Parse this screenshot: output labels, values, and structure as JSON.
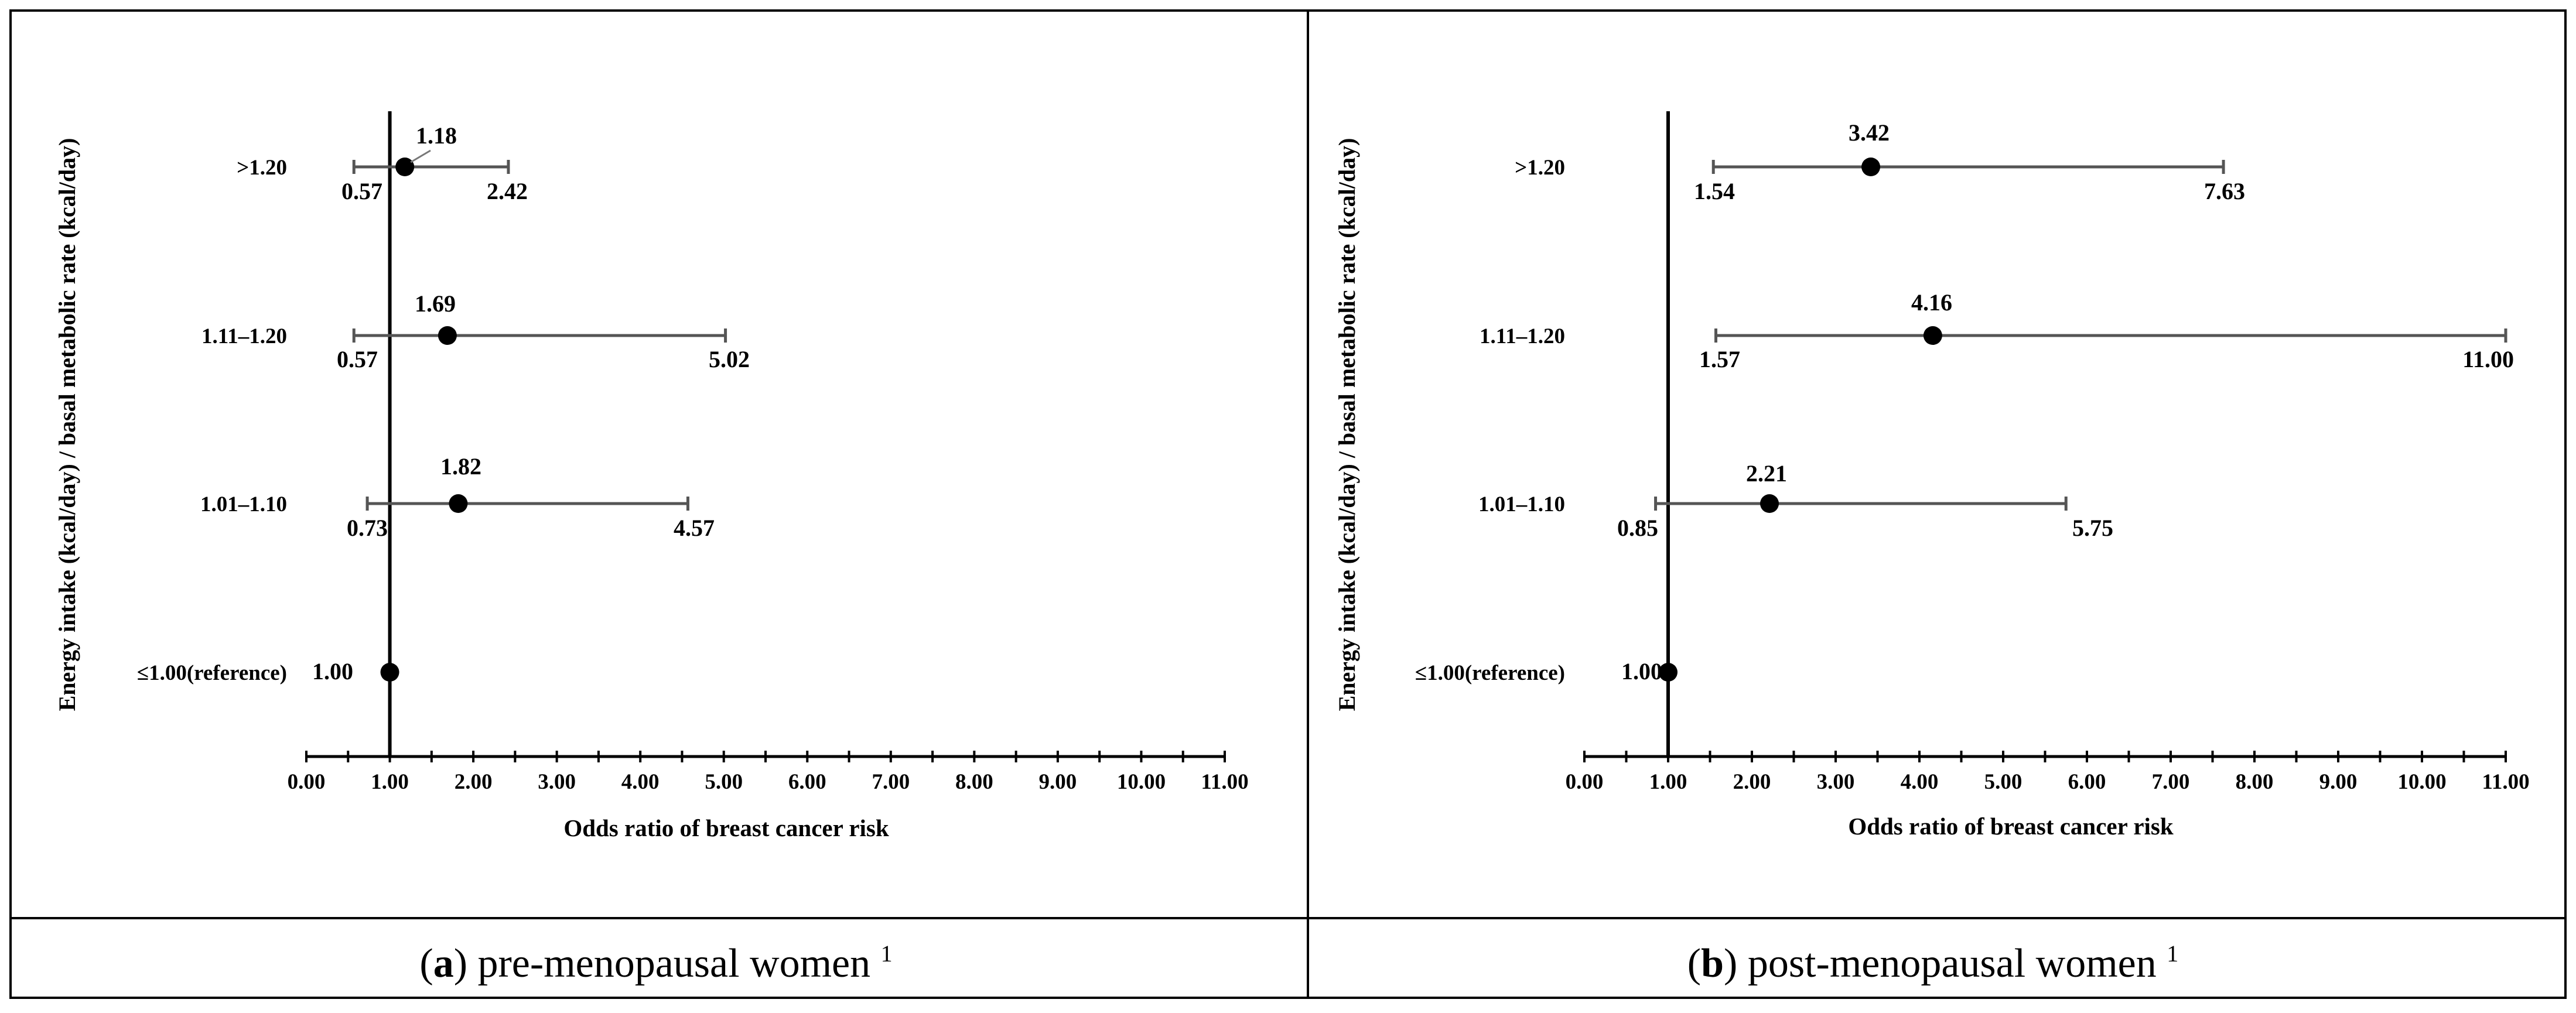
{
  "chart_data": [
    {
      "type": "forest",
      "panel": "a",
      "caption_letter": "a",
      "caption_text": "pre-menopausal women",
      "caption_sup": "1",
      "xlabel": "Odds ratio of breast cancer risk",
      "ylabel": "Energy intake (kcal/day) / basal metabolic rate (kcal/day)",
      "xlim": [
        0,
        11
      ],
      "xticks": [
        "0.00",
        "1.00",
        "2.00",
        "3.00",
        "4.00",
        "5.00",
        "6.00",
        "7.00",
        "8.00",
        "9.00",
        "10.00",
        "11.00"
      ],
      "reference_line": 1,
      "rows": [
        {
          "category": ">1.20",
          "or": 1.18,
          "lower": 0.57,
          "upper": 2.42,
          "or_text": "1.18",
          "lower_text": "0.57",
          "upper_text": "2.42"
        },
        {
          "category": "1.11–1.20",
          "or": 1.69,
          "lower": 0.57,
          "upper": 5.02,
          "or_text": "1.69",
          "lower_text": "0.57",
          "upper_text": "5.02"
        },
        {
          "category": "1.01–1.10",
          "or": 1.82,
          "lower": 0.73,
          "upper": 4.57,
          "or_text": "1.82",
          "lower_text": "0.73",
          "upper_text": "4.57"
        },
        {
          "category": "≤1.00(reference)",
          "or": 1.0,
          "or_text": "1.00"
        }
      ]
    },
    {
      "type": "forest",
      "panel": "b",
      "caption_letter": "b",
      "caption_text": "post-menopausal women",
      "caption_sup": "1",
      "xlabel": "Odds ratio of breast cancer risk",
      "ylabel": "Energy intake (kcal/day) / basal metabolic rate (kcal/day)",
      "xlim": [
        0,
        11
      ],
      "xticks": [
        "0.00",
        "1.00",
        "2.00",
        "3.00",
        "4.00",
        "5.00",
        "6.00",
        "7.00",
        "8.00",
        "9.00",
        "10.00",
        "11.00"
      ],
      "reference_line": 1,
      "rows": [
        {
          "category": ">1.20",
          "or": 3.42,
          "lower": 1.54,
          "upper": 7.63,
          "or_text": "3.42",
          "lower_text": "1.54",
          "upper_text": "7.63"
        },
        {
          "category": "1.11–1.20",
          "or": 4.16,
          "lower": 1.57,
          "upper": 11.0,
          "or_text": "4.16",
          "lower_text": "1.57",
          "upper_text": "11.00"
        },
        {
          "category": "1.01–1.10",
          "or": 2.21,
          "lower": 0.85,
          "upper": 5.75,
          "or_text": "2.21",
          "lower_text": "0.85",
          "upper_text": "5.75"
        },
        {
          "category": "≤1.00(reference)",
          "or": 1.0,
          "or_text": "1.00"
        }
      ]
    }
  ]
}
